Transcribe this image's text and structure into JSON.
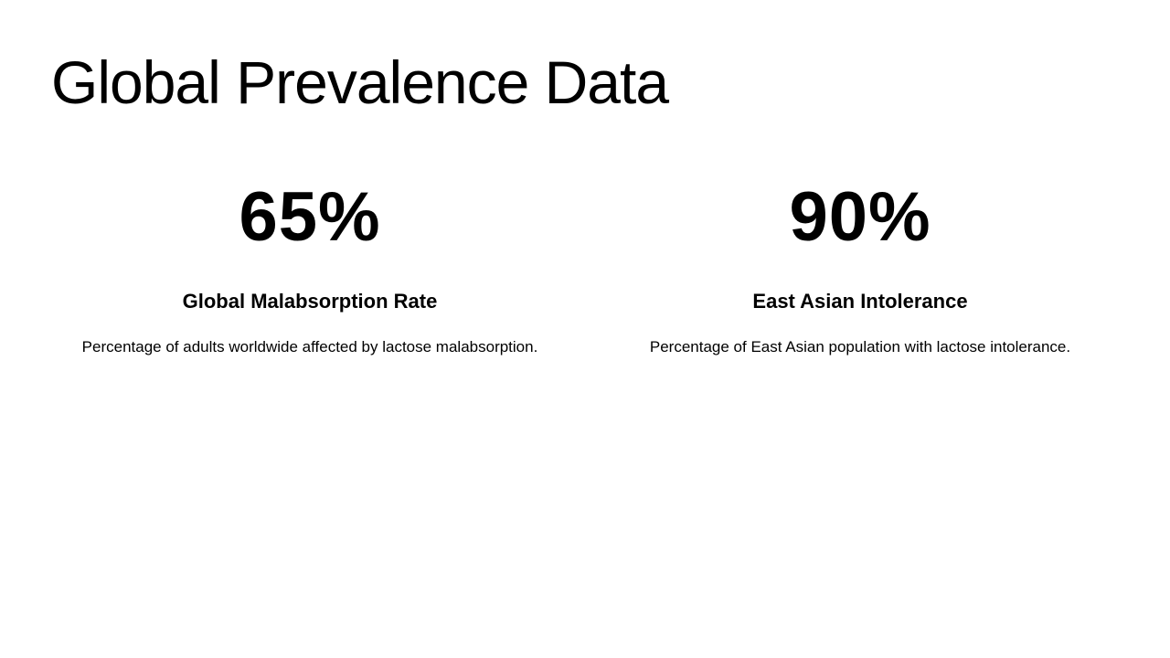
{
  "title": "Global Prevalence Data",
  "stats": [
    {
      "value": "65%",
      "heading": "Global Malabsorption Rate",
      "description": "Percentage of adults worldwide affected by lactose malabsorption."
    },
    {
      "value": "90%",
      "heading": "East Asian Intolerance",
      "description": "Percentage of East Asian population with lactose intolerance."
    }
  ]
}
